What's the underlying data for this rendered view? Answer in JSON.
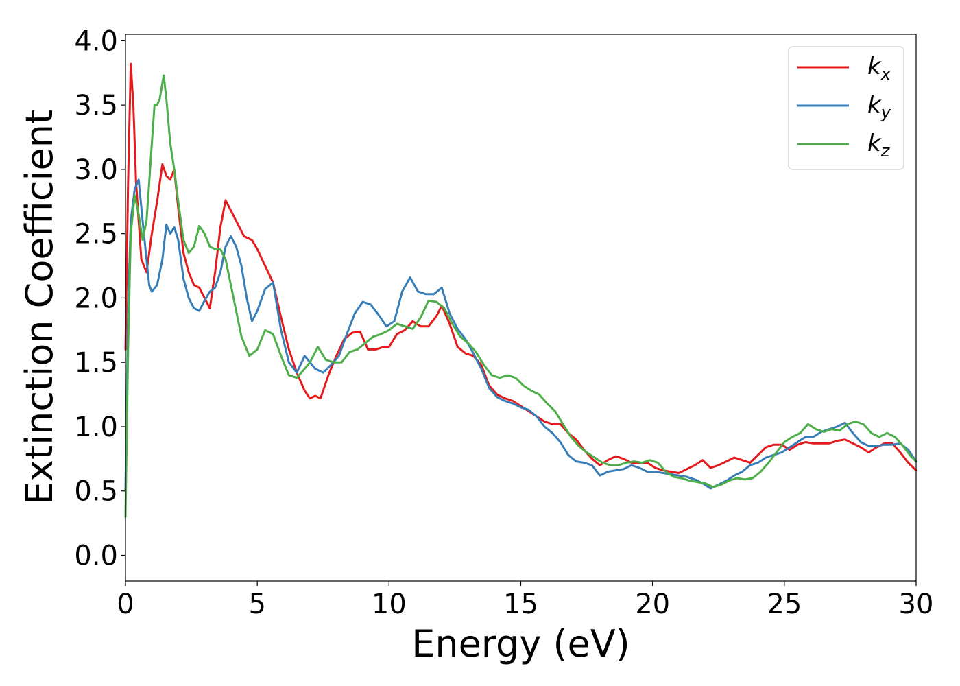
{
  "chart_data": {
    "type": "line",
    "xlabel": "Energy (eV)",
    "ylabel": "Extinction Coefficient",
    "xlim": [
      0,
      30
    ],
    "ylim": [
      -0.2,
      4.05
    ],
    "xticks": [
      0,
      5,
      10,
      15,
      20,
      25,
      30
    ],
    "xtick_labels": [
      "0",
      "5",
      "10",
      "15",
      "20",
      "25",
      "30"
    ],
    "yticks": [
      0.0,
      0.5,
      1.0,
      1.5,
      2.0,
      2.5,
      3.0,
      3.5,
      4.0
    ],
    "ytick_labels": [
      "0.0",
      "0.5",
      "1.0",
      "1.5",
      "2.0",
      "2.5",
      "3.0",
      "3.5",
      "4.0"
    ],
    "grid": false,
    "legend_position": "top-right",
    "series": [
      {
        "name": "kx",
        "label_base": "k",
        "label_sub": "x",
        "color": "#e41a1c",
        "x": [
          0,
          0.1,
          0.2,
          0.3,
          0.4,
          0.5,
          0.6,
          0.8,
          1.0,
          1.2,
          1.4,
          1.55,
          1.7,
          1.85,
          2.0,
          2.2,
          2.4,
          2.6,
          2.8,
          3.0,
          3.2,
          3.4,
          3.6,
          3.8,
          4.0,
          4.2,
          4.5,
          4.8,
          5.0,
          5.3,
          5.6,
          5.9,
          6.2,
          6.5,
          6.8,
          7.0,
          7.2,
          7.4,
          7.7,
          8.0,
          8.3,
          8.6,
          8.9,
          9.2,
          9.5,
          9.8,
          10.0,
          10.3,
          10.6,
          10.9,
          11.2,
          11.5,
          11.8,
          12.0,
          12.3,
          12.6,
          12.9,
          13.2,
          13.5,
          13.8,
          14.1,
          14.4,
          14.7,
          15.0,
          15.3,
          15.6,
          15.9,
          16.2,
          16.5,
          16.8,
          17.1,
          17.4,
          17.7,
          18.0,
          18.3,
          18.6,
          18.9,
          19.2,
          19.5,
          19.8,
          20.1,
          20.4,
          20.7,
          21.0,
          21.3,
          21.6,
          21.9,
          22.2,
          22.5,
          22.8,
          23.1,
          23.4,
          23.7,
          24.0,
          24.3,
          24.6,
          24.9,
          25.2,
          25.5,
          25.8,
          26.1,
          26.4,
          26.7,
          27.0,
          27.3,
          27.6,
          27.9,
          28.2,
          28.5,
          28.8,
          29.1,
          29.4,
          29.7,
          30.0
        ],
        "y": [
          1.6,
          2.9,
          3.82,
          3.5,
          2.9,
          2.6,
          2.3,
          2.2,
          2.5,
          2.75,
          3.04,
          2.95,
          2.92,
          3.0,
          2.7,
          2.35,
          2.2,
          2.1,
          2.08,
          2.0,
          1.92,
          2.2,
          2.55,
          2.76,
          2.68,
          2.6,
          2.48,
          2.45,
          2.38,
          2.25,
          2.12,
          1.85,
          1.6,
          1.42,
          1.28,
          1.22,
          1.24,
          1.22,
          1.4,
          1.55,
          1.68,
          1.73,
          1.74,
          1.6,
          1.6,
          1.62,
          1.62,
          1.72,
          1.75,
          1.82,
          1.78,
          1.78,
          1.86,
          1.94,
          1.8,
          1.62,
          1.57,
          1.55,
          1.48,
          1.32,
          1.25,
          1.22,
          1.2,
          1.16,
          1.12,
          1.08,
          1.04,
          1.02,
          1.02,
          0.95,
          0.9,
          0.82,
          0.75,
          0.7,
          0.74,
          0.77,
          0.75,
          0.72,
          0.72,
          0.72,
          0.68,
          0.66,
          0.65,
          0.64,
          0.67,
          0.7,
          0.74,
          0.68,
          0.7,
          0.73,
          0.76,
          0.74,
          0.72,
          0.78,
          0.84,
          0.86,
          0.86,
          0.82,
          0.86,
          0.88,
          0.87,
          0.87,
          0.87,
          0.89,
          0.9,
          0.87,
          0.84,
          0.8,
          0.84,
          0.87,
          0.87,
          0.8,
          0.72,
          0.66
        ]
      },
      {
        "name": "ky",
        "label_base": "k",
        "label_sub": "y",
        "color": "#377eb8",
        "x": [
          0,
          0.1,
          0.2,
          0.35,
          0.5,
          0.65,
          0.8,
          0.9,
          1.0,
          1.2,
          1.4,
          1.55,
          1.7,
          1.85,
          2.0,
          2.2,
          2.4,
          2.6,
          2.8,
          3.0,
          3.2,
          3.4,
          3.6,
          3.8,
          4.0,
          4.2,
          4.4,
          4.6,
          4.8,
          5.0,
          5.3,
          5.6,
          5.9,
          6.2,
          6.5,
          6.8,
          7.0,
          7.2,
          7.5,
          7.8,
          8.1,
          8.4,
          8.7,
          9.0,
          9.3,
          9.6,
          9.9,
          10.2,
          10.5,
          10.8,
          11.1,
          11.4,
          11.7,
          12.0,
          12.3,
          12.6,
          12.9,
          13.2,
          13.5,
          13.8,
          14.1,
          14.4,
          14.7,
          15.0,
          15.3,
          15.6,
          15.9,
          16.2,
          16.5,
          16.8,
          17.1,
          17.4,
          17.7,
          18.0,
          18.3,
          18.6,
          18.9,
          19.2,
          19.5,
          19.8,
          20.1,
          20.4,
          20.7,
          21.0,
          21.3,
          21.6,
          21.9,
          22.2,
          22.5,
          22.8,
          23.1,
          23.4,
          23.7,
          24.0,
          24.3,
          24.6,
          24.9,
          25.2,
          25.5,
          25.8,
          26.1,
          26.4,
          26.7,
          27.0,
          27.3,
          27.6,
          27.9,
          28.2,
          28.5,
          28.8,
          29.1,
          29.4,
          29.7,
          30.0
        ],
        "y": [
          0.5,
          1.9,
          2.6,
          2.85,
          2.92,
          2.6,
          2.3,
          2.1,
          2.05,
          2.1,
          2.3,
          2.57,
          2.5,
          2.55,
          2.45,
          2.15,
          2.0,
          1.92,
          1.9,
          1.98,
          2.05,
          2.08,
          2.2,
          2.4,
          2.48,
          2.4,
          2.25,
          2.0,
          1.82,
          1.9,
          2.07,
          2.12,
          1.75,
          1.5,
          1.42,
          1.55,
          1.5,
          1.45,
          1.42,
          1.48,
          1.55,
          1.72,
          1.88,
          1.97,
          1.95,
          1.87,
          1.78,
          1.82,
          2.05,
          2.16,
          2.05,
          2.03,
          2.03,
          2.08,
          1.88,
          1.76,
          1.68,
          1.57,
          1.45,
          1.3,
          1.23,
          1.2,
          1.18,
          1.15,
          1.13,
          1.08,
          1.0,
          0.95,
          0.88,
          0.78,
          0.73,
          0.72,
          0.7,
          0.62,
          0.65,
          0.66,
          0.67,
          0.7,
          0.68,
          0.65,
          0.65,
          0.64,
          0.63,
          0.62,
          0.61,
          0.59,
          0.56,
          0.52,
          0.55,
          0.58,
          0.62,
          0.65,
          0.7,
          0.72,
          0.76,
          0.78,
          0.8,
          0.84,
          0.88,
          0.92,
          0.92,
          0.96,
          0.98,
          1.0,
          1.03,
          0.95,
          0.88,
          0.85,
          0.85,
          0.86,
          0.86,
          0.87,
          0.82,
          0.73
        ]
      },
      {
        "name": "kz",
        "label_base": "k",
        "label_sub": "z",
        "color": "#4daf4a",
        "x": [
          0,
          0.1,
          0.2,
          0.35,
          0.5,
          0.65,
          0.8,
          0.9,
          1.0,
          1.1,
          1.2,
          1.3,
          1.45,
          1.55,
          1.7,
          1.85,
          2.0,
          2.2,
          2.4,
          2.6,
          2.8,
          3.0,
          3.2,
          3.4,
          3.6,
          3.8,
          4.0,
          4.2,
          4.4,
          4.7,
          5.0,
          5.3,
          5.6,
          5.9,
          6.2,
          6.5,
          6.8,
          7.0,
          7.3,
          7.6,
          7.9,
          8.2,
          8.5,
          8.8,
          9.1,
          9.4,
          9.7,
          10.0,
          10.3,
          10.6,
          10.9,
          11.2,
          11.5,
          11.8,
          12.1,
          12.4,
          12.7,
          13.0,
          13.3,
          13.6,
          13.9,
          14.2,
          14.5,
          14.8,
          15.1,
          15.4,
          15.7,
          16.0,
          16.3,
          16.6,
          16.9,
          17.2,
          17.5,
          17.8,
          18.1,
          18.4,
          18.7,
          19.0,
          19.3,
          19.6,
          19.9,
          20.2,
          20.5,
          20.8,
          21.1,
          21.4,
          21.7,
          22.0,
          22.3,
          22.6,
          22.9,
          23.2,
          23.5,
          23.8,
          24.1,
          24.4,
          24.7,
          25.0,
          25.3,
          25.6,
          25.9,
          26.2,
          26.5,
          26.8,
          27.1,
          27.4,
          27.7,
          28.0,
          28.3,
          28.6,
          28.9,
          29.2,
          29.5,
          29.8,
          30.0
        ],
        "y": [
          0.3,
          1.6,
          2.5,
          2.8,
          2.65,
          2.45,
          2.6,
          2.9,
          3.2,
          3.5,
          3.5,
          3.55,
          3.73,
          3.55,
          3.2,
          3.0,
          2.75,
          2.45,
          2.35,
          2.4,
          2.56,
          2.5,
          2.4,
          2.38,
          2.38,
          2.3,
          2.1,
          1.9,
          1.7,
          1.55,
          1.6,
          1.75,
          1.72,
          1.55,
          1.4,
          1.38,
          1.45,
          1.5,
          1.62,
          1.52,
          1.5,
          1.5,
          1.58,
          1.6,
          1.65,
          1.7,
          1.72,
          1.75,
          1.8,
          1.78,
          1.76,
          1.85,
          1.98,
          1.97,
          1.92,
          1.8,
          1.7,
          1.65,
          1.58,
          1.48,
          1.4,
          1.38,
          1.4,
          1.38,
          1.32,
          1.28,
          1.25,
          1.18,
          1.12,
          1.02,
          0.92,
          0.85,
          0.8,
          0.76,
          0.72,
          0.7,
          0.7,
          0.72,
          0.73,
          0.72,
          0.74,
          0.72,
          0.65,
          0.61,
          0.6,
          0.58,
          0.57,
          0.56,
          0.53,
          0.55,
          0.58,
          0.6,
          0.59,
          0.6,
          0.65,
          0.72,
          0.8,
          0.88,
          0.92,
          0.95,
          1.02,
          0.98,
          0.96,
          0.98,
          0.97,
          1.02,
          1.04,
          1.02,
          0.95,
          0.92,
          0.95,
          0.92,
          0.85,
          0.77,
          0.73
        ]
      }
    ]
  }
}
